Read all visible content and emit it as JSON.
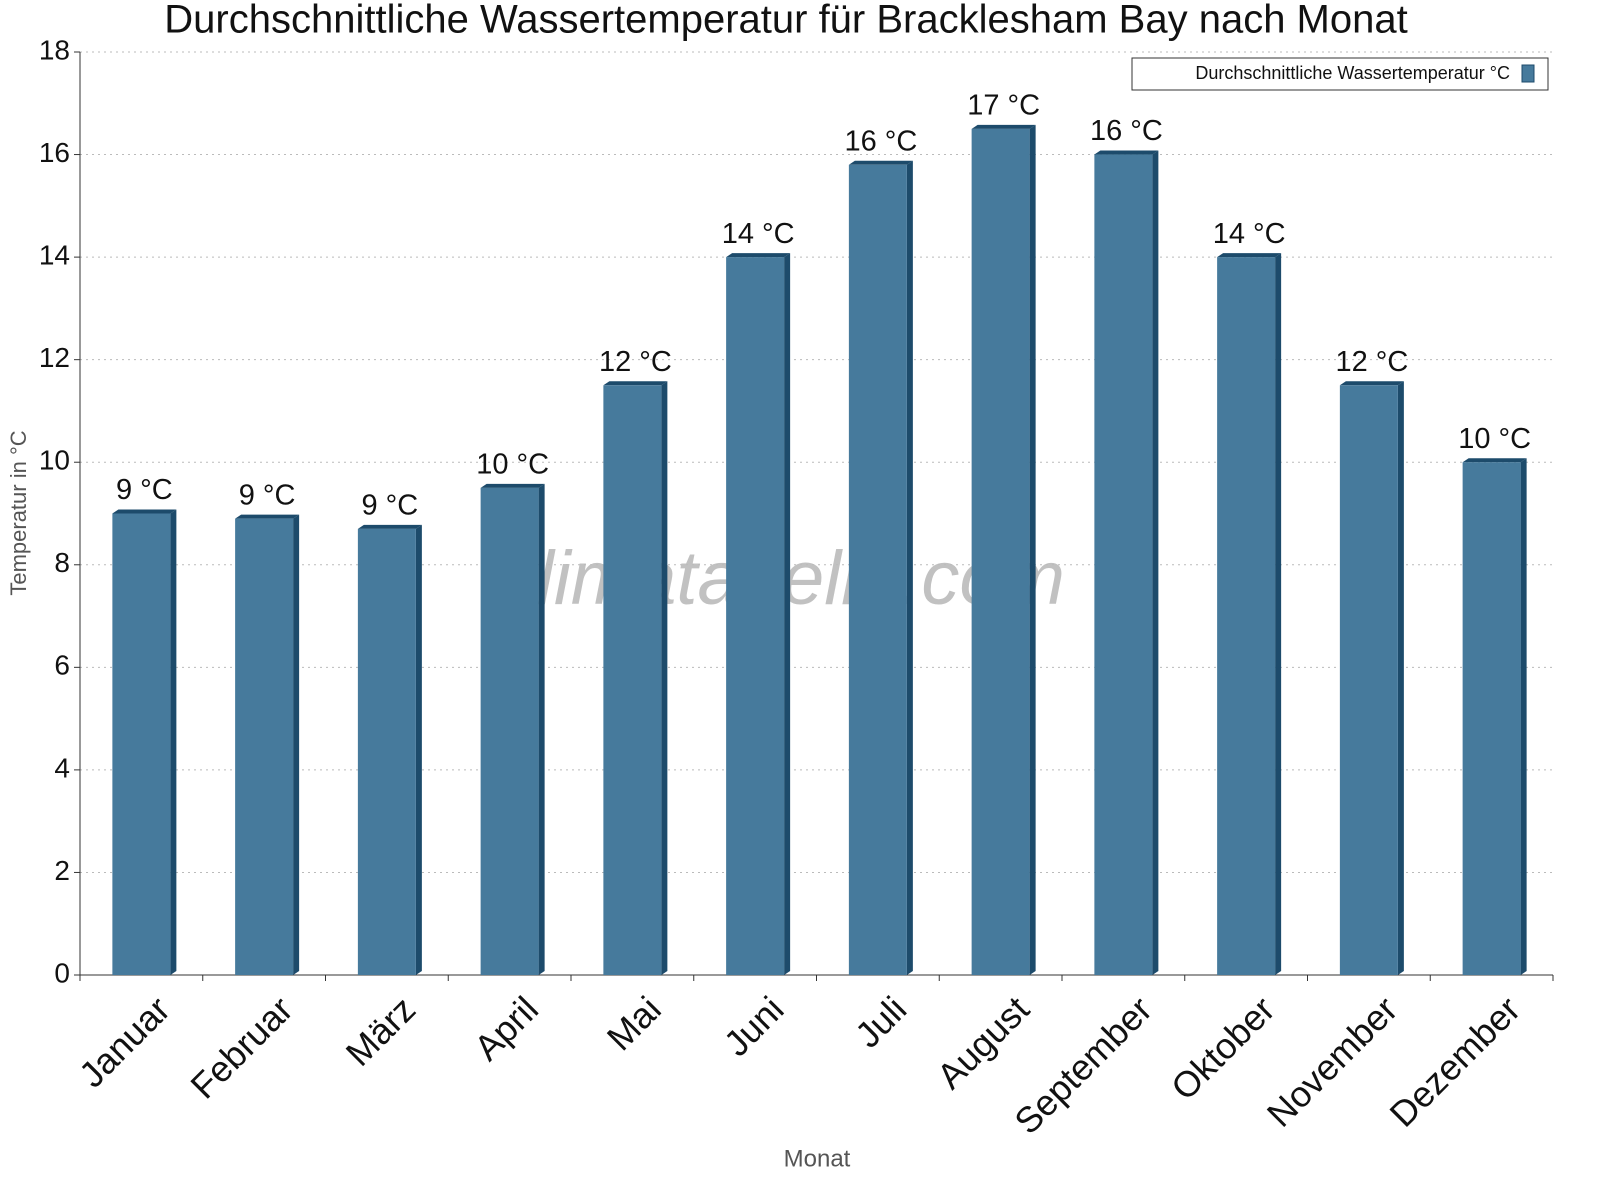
{
  "chart_data": {
    "type": "bar",
    "title": "Durchschnittliche Wassertemperatur für Bracklesham Bay nach Monat",
    "x_label": "Monat",
    "y_label": "Temperatur in °C",
    "watermark": "klimatabelle.com",
    "categories": [
      "Januar",
      "Februar",
      "März",
      "April",
      "Mai",
      "Juni",
      "Juli",
      "August",
      "September",
      "Oktober",
      "November",
      "Dezember"
    ],
    "series": [
      {
        "name": "Durchschnittliche Wassertemperatur °C",
        "color": "#467a9c",
        "values": [
          9.0,
          8.9,
          8.7,
          9.5,
          11.5,
          14.0,
          15.8,
          16.5,
          16.0,
          14.0,
          11.5,
          10.0
        ],
        "value_labels": [
          "9 °C",
          "9 °C",
          "9 °C",
          "10 °C",
          "12 °C",
          "14 °C",
          "16 °C",
          "17 °C",
          "16 °C",
          "14 °C",
          "12 °C",
          "10 °C"
        ]
      }
    ],
    "ylim": [
      0,
      18
    ],
    "yticks": [
      0,
      2,
      4,
      6,
      8,
      10,
      12,
      14,
      16,
      18
    ],
    "grid": true,
    "legend": "top-right"
  }
}
